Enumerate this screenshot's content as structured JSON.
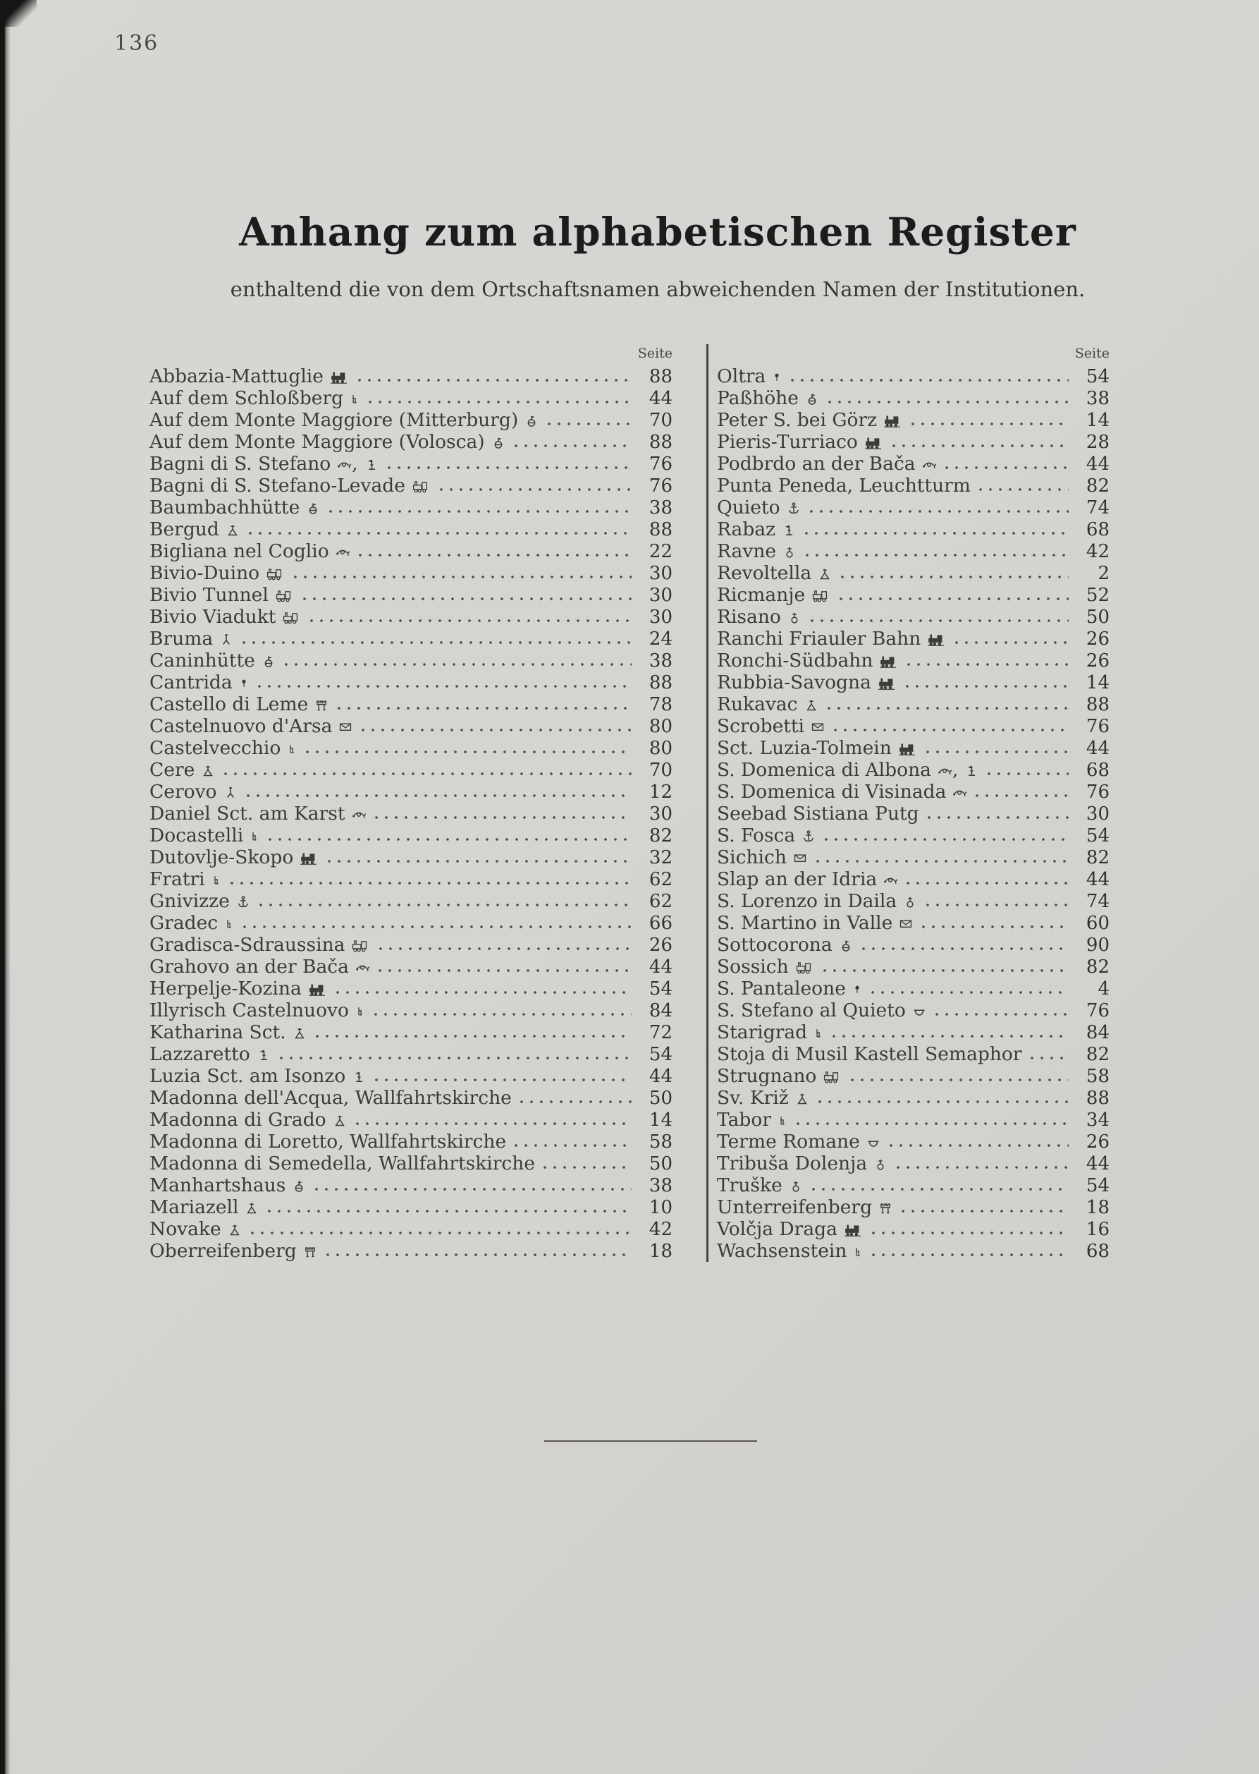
{
  "page": {
    "number": "136"
  },
  "header": {
    "title": "Anhang zum alphabetischen Register",
    "subtitle": "enthaltend die von dem Ortschaftsnamen abweichenden Namen der Institutionen."
  },
  "columns": {
    "seite_label": "Seite",
    "left": [
      {
        "name": "Abbazia-Mattuglie",
        "symbols": [
          "railway"
        ],
        "page": "88"
      },
      {
        "name": "Auf dem Schloßberg",
        "symbols": [
          "ruin"
        ],
        "page": "44"
      },
      {
        "name": "Auf dem Monte Maggiore (Mitterburg)",
        "symbols": [
          "lookout"
        ],
        "page": "70"
      },
      {
        "name": "Auf dem Monte Maggiore (Volosca)",
        "symbols": [
          "lookout"
        ],
        "page": "88"
      },
      {
        "name": "Bagni di S. Stefano",
        "symbols": [
          "posthorn",
          "signal"
        ],
        "page": "76"
      },
      {
        "name": "Bagni di S. Stefano-Levade",
        "symbols": [
          "railway-outline"
        ],
        "page": "76"
      },
      {
        "name": "Baumbachhütte",
        "symbols": [
          "lookout"
        ],
        "page": "38"
      },
      {
        "name": "Bergud",
        "symbols": [
          "trig"
        ],
        "page": "88"
      },
      {
        "name": "Bigliana nel Coglio",
        "symbols": [
          "posthorn"
        ],
        "page": "22"
      },
      {
        "name": "Bivio-Duino",
        "symbols": [
          "railway-outline"
        ],
        "page": "30"
      },
      {
        "name": "Bivio Tunnel",
        "symbols": [
          "railway-outline"
        ],
        "page": "30"
      },
      {
        "name": "Bivio Viadukt",
        "symbols": [
          "railway-outline"
        ],
        "page": "30"
      },
      {
        "name": "Bruma",
        "symbols": [
          "tripod"
        ],
        "page": "24"
      },
      {
        "name": "Caninhütte",
        "symbols": [
          "lookout"
        ],
        "page": "38"
      },
      {
        "name": "Cantrida",
        "symbols": [
          "buoy"
        ],
        "page": "88"
      },
      {
        "name": "Castello di Leme",
        "symbols": [
          "castle"
        ],
        "page": "78"
      },
      {
        "name": "Castelnuovo d'Arsa",
        "symbols": [
          "envelope"
        ],
        "page": "80"
      },
      {
        "name": "Castelvecchio",
        "symbols": [
          "ruin"
        ],
        "page": "80"
      },
      {
        "name": "Cere",
        "symbols": [
          "trig"
        ],
        "page": "70"
      },
      {
        "name": "Cerovo",
        "symbols": [
          "tripod"
        ],
        "page": "12"
      },
      {
        "name": "Daniel Sct. am Karst",
        "symbols": [
          "posthorn"
        ],
        "page": "30"
      },
      {
        "name": "Docastelli",
        "symbols": [
          "ruin"
        ],
        "page": "82"
      },
      {
        "name": "Dutovlje-Skopo",
        "symbols": [
          "railway"
        ],
        "page": "32"
      },
      {
        "name": "Fratri",
        "symbols": [
          "ruin"
        ],
        "page": "62"
      },
      {
        "name": "Gnivizze",
        "symbols": [
          "anchor"
        ],
        "page": "62"
      },
      {
        "name": "Gradec",
        "symbols": [
          "ruin"
        ],
        "page": "66"
      },
      {
        "name": "Gradisca-Sdraussina",
        "symbols": [
          "railway-outline"
        ],
        "page": "26"
      },
      {
        "name": "Grahovo an der Bača",
        "symbols": [
          "posthorn"
        ],
        "page": "44"
      },
      {
        "name": "Herpelje-Kozina",
        "symbols": [
          "railway"
        ],
        "page": "54"
      },
      {
        "name": "Illyrisch Castelnuovo",
        "symbols": [
          "ruin"
        ],
        "page": "84"
      },
      {
        "name": "Katharina Sct.",
        "symbols": [
          "trig"
        ],
        "page": "72"
      },
      {
        "name": "Lazzaretto",
        "symbols": [
          "signal"
        ],
        "page": "54"
      },
      {
        "name": "Luzia Sct. am Isonzo",
        "symbols": [
          "signal"
        ],
        "page": "44"
      },
      {
        "name": "Madonna dell'Acqua, Wallfahrtskirche",
        "symbols": [],
        "page": "50"
      },
      {
        "name": "Madonna di Grado",
        "symbols": [
          "trig"
        ],
        "page": "14"
      },
      {
        "name": "Madonna di Loretto, Wallfahrtskirche",
        "symbols": [],
        "page": "58"
      },
      {
        "name": "Madonna di Semedella, Wallfahrtskirche",
        "symbols": [],
        "page": "50"
      },
      {
        "name": "Manhartshaus",
        "symbols": [
          "lookout"
        ],
        "page": "38"
      },
      {
        "name": "Mariazell",
        "symbols": [
          "trig"
        ],
        "page": "10"
      },
      {
        "name": "Novake",
        "symbols": [
          "trig"
        ],
        "page": "42"
      },
      {
        "name": "Oberreifenberg",
        "symbols": [
          "castle"
        ],
        "page": "18"
      }
    ],
    "right": [
      {
        "name": "Oltra",
        "symbols": [
          "buoy"
        ],
        "page": "54"
      },
      {
        "name": "Paßhöhe",
        "symbols": [
          "lookout"
        ],
        "page": "38"
      },
      {
        "name": "Peter S. bei Görz",
        "symbols": [
          "railway"
        ],
        "page": "14"
      },
      {
        "name": "Pieris-Turriaco",
        "symbols": [
          "railway"
        ],
        "page": "28"
      },
      {
        "name": "Podbrdo an der Bača",
        "symbols": [
          "posthorn"
        ],
        "page": "44"
      },
      {
        "name": "Punta Peneda, Leuchtturm",
        "symbols": [],
        "page": "82"
      },
      {
        "name": "Quieto",
        "symbols": [
          "anchor"
        ],
        "page": "74"
      },
      {
        "name": "Rabaz",
        "symbols": [
          "signal"
        ],
        "page": "68"
      },
      {
        "name": "Ravne",
        "symbols": [
          "church"
        ],
        "page": "42"
      },
      {
        "name": "Revoltella",
        "symbols": [
          "trig"
        ],
        "page": "2"
      },
      {
        "name": "Ricmanje",
        "symbols": [
          "railway-outline"
        ],
        "page": "52"
      },
      {
        "name": "Risano",
        "symbols": [
          "church"
        ],
        "page": "50"
      },
      {
        "name": "Ranchi Friauler Bahn",
        "symbols": [
          "railway"
        ],
        "page": "26"
      },
      {
        "name": "Ronchi-Südbahn",
        "symbols": [
          "railway"
        ],
        "page": "26"
      },
      {
        "name": "Rubbia-Savogna",
        "symbols": [
          "railway"
        ],
        "page": "14"
      },
      {
        "name": "Rukavac",
        "symbols": [
          "trig"
        ],
        "page": "88"
      },
      {
        "name": "Scrobetti",
        "symbols": [
          "envelope"
        ],
        "page": "76"
      },
      {
        "name": "Sct. Luzia-Tolmein",
        "symbols": [
          "railway"
        ],
        "page": "44"
      },
      {
        "name": "S. Domenica di Albona",
        "symbols": [
          "posthorn",
          "signal"
        ],
        "page": "68"
      },
      {
        "name": "S. Domenica di Visinada",
        "symbols": [
          "posthorn"
        ],
        "page": "76"
      },
      {
        "name": "Seebad Sistiana Putg",
        "symbols": [],
        "page": "30"
      },
      {
        "name": "S. Fosca",
        "symbols": [
          "anchor"
        ],
        "page": "54"
      },
      {
        "name": "Sichich",
        "symbols": [
          "envelope"
        ],
        "page": "82"
      },
      {
        "name": "Slap an der Idria",
        "symbols": [
          "posthorn"
        ],
        "page": "44"
      },
      {
        "name": "S. Lorenzo in Daila",
        "symbols": [
          "church"
        ],
        "page": "74"
      },
      {
        "name": "S. Martino in Valle",
        "symbols": [
          "envelope"
        ],
        "page": "60"
      },
      {
        "name": "Sottocorona",
        "symbols": [
          "lookout"
        ],
        "page": "90"
      },
      {
        "name": "Sossich",
        "symbols": [
          "railway-outline"
        ],
        "page": "82"
      },
      {
        "name": "S. Pantaleone",
        "symbols": [
          "buoy"
        ],
        "page": "4"
      },
      {
        "name": "S. Stefano al Quieto",
        "symbols": [
          "bath"
        ],
        "page": "76"
      },
      {
        "name": "Starigrad",
        "symbols": [
          "ruin"
        ],
        "page": "84"
      },
      {
        "name": "Stoja di Musil Kastell Semaphor",
        "symbols": [],
        "page": "82"
      },
      {
        "name": "Strugnano",
        "symbols": [
          "railway-outline"
        ],
        "page": "58"
      },
      {
        "name": "Sv. Križ",
        "symbols": [
          "trig"
        ],
        "page": "88"
      },
      {
        "name": "Tabor",
        "symbols": [
          "ruin"
        ],
        "page": "34"
      },
      {
        "name": "Terme Romane",
        "symbols": [
          "bath"
        ],
        "page": "26"
      },
      {
        "name": "Tribuša Dolenja",
        "symbols": [
          "church"
        ],
        "page": "44"
      },
      {
        "name": "Truške",
        "symbols": [
          "church"
        ],
        "page": "54"
      },
      {
        "name": "Unterreifenberg",
        "symbols": [
          "castle"
        ],
        "page": "18"
      },
      {
        "name": "Volčja Draga",
        "symbols": [
          "railway"
        ],
        "page": "16"
      },
      {
        "name": "Wachsenstein",
        "symbols": [
          "ruin"
        ],
        "page": "68"
      }
    ]
  },
  "colors": {
    "paper": "#d4d3cf",
    "ink": "#3d3b37",
    "title_ink": "#1d1c1a",
    "divider": "#454340"
  }
}
